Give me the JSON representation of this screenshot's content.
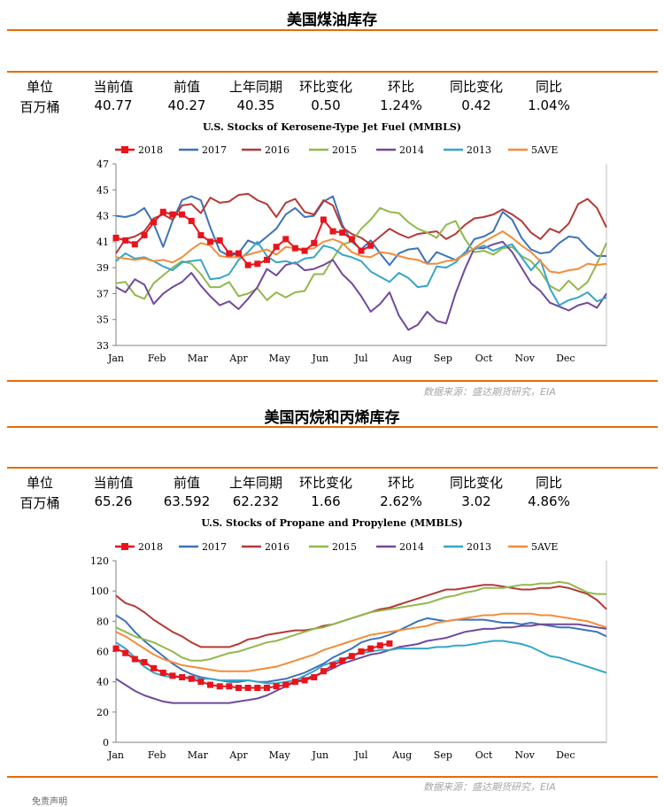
{
  "sections": [
    {
      "title": "美国煤油库存",
      "table": {
        "headers": [
          "单位",
          "当前值",
          "前值",
          "上年同期",
          "环比变化",
          "环比",
          "同比变化",
          "同比"
        ],
        "values": [
          "百万桶",
          "40.77",
          "40.27",
          "40.35",
          "0.50",
          "1.24%",
          "0.42",
          "1.04%"
        ]
      },
      "source": "数据来源：盛达期货研究，EIA"
    },
    {
      "title": "美国丙烷和丙烯库存",
      "table": {
        "headers": [
          "单位",
          "当前值",
          "前值",
          "上年同期",
          "环比变化",
          "环比",
          "同比变化",
          "同比"
        ],
        "values": [
          "百万桶",
          "65.26",
          "63.592",
          "62.232",
          "1.66",
          "2.62%",
          "3.02",
          "4.86%"
        ]
      },
      "source": "数据来源：盛达期货研究，EIA"
    }
  ],
  "footer": "免责声明",
  "colors": {
    "2018": "#e8141b",
    "2017": "#3c74b6",
    "2016": "#b33a36",
    "2015": "#92b84d",
    "2014": "#71499b",
    "2013": "#35a6c8",
    "5AVE": "#f28c3b",
    "accent_line": "#e46c0a"
  },
  "chart_data": [
    {
      "type": "line",
      "title": "U.S.  Stocks of Kerosene-Type Jet Fuel (MMBLS)",
      "xlabel": "",
      "ylabel": "",
      "ylim": [
        33,
        47
      ],
      "yticks": [
        33,
        35,
        37,
        39,
        41,
        43,
        45,
        47
      ],
      "month_labels": [
        "Jan",
        "Feb",
        "Mar",
        "Apr",
        "May",
        "Jun",
        "Jul",
        "Aug",
        "Sep",
        "Oct",
        "Nov",
        "Dec"
      ],
      "legend_placement": "top",
      "grid": false,
      "series": [
        {
          "name": "2018",
          "marker": "square",
          "values": [
            41.3,
            41.1,
            40.8,
            41.5,
            42.5,
            43.3,
            43.1,
            43.1,
            42.6,
            41.5,
            41.0,
            41.1,
            40.1,
            40.1,
            39.2,
            39.3,
            39.6,
            40.6,
            41.2,
            40.5,
            40.3,
            40.9,
            42.7,
            41.8,
            41.7,
            41.2,
            40.3,
            40.7
          ]
        },
        {
          "name": "2017",
          "values": [
            43.0,
            42.9,
            43.1,
            43.6,
            42.4,
            40.6,
            42.6,
            44.2,
            44.5,
            44.2,
            42.1,
            40.3,
            39.9,
            40.1,
            41.1,
            40.8,
            41.4,
            42.0,
            43.1,
            43.6,
            42.9,
            43.0,
            44.1,
            44.5,
            42.3,
            41.0,
            40.4,
            41.1,
            40.1,
            39.2,
            40.1,
            40.4,
            40.5,
            39.3,
            40.2,
            39.9,
            39.6,
            40.1,
            41.2,
            41.4,
            41.8,
            43.3,
            42.7,
            41.3,
            40.4,
            40.1,
            40.2,
            40.9,
            41.4,
            41.3,
            40.5,
            39.9,
            39.9
          ]
        },
        {
          "name": "2016",
          "values": [
            40.1,
            41.2,
            41.4,
            41.8,
            42.8,
            43.1,
            42.7,
            43.8,
            43.9,
            43.2,
            44.4,
            44.0,
            44.1,
            44.6,
            44.7,
            44.2,
            43.9,
            42.9,
            44.0,
            44.3,
            43.3,
            43.1,
            44.2,
            43.8,
            42.1,
            41.6,
            41.3,
            40.8,
            41.4,
            42.0,
            41.6,
            41.3,
            41.6,
            41.7,
            41.8,
            41.2,
            41.6,
            42.3,
            42.8,
            42.9,
            43.1,
            43.5,
            43.1,
            42.6,
            41.7,
            41.2,
            42.0,
            41.7,
            42.4,
            43.9,
            44.3,
            43.6,
            42.1
          ]
        },
        {
          "name": "2015",
          "values": [
            37.8,
            37.9,
            36.9,
            36.6,
            37.8,
            38.4,
            39.0,
            39.5,
            39.3,
            38.5,
            37.5,
            37.5,
            37.9,
            36.8,
            37.0,
            37.4,
            36.5,
            37.1,
            36.7,
            37.1,
            37.2,
            38.5,
            38.5,
            39.7,
            40.8,
            41.0,
            42.0,
            42.7,
            43.6,
            43.3,
            43.2,
            42.5,
            42.0,
            41.7,
            41.3,
            42.3,
            42.6,
            41.2,
            40.2,
            40.3,
            40.0,
            40.5,
            40.6,
            39.9,
            39.5,
            38.7,
            37.6,
            37.2,
            38.0,
            37.3,
            37.9,
            39.3,
            40.9
          ]
        },
        {
          "name": "2014",
          "values": [
            37.5,
            37.1,
            38.1,
            37.7,
            36.2,
            37.0,
            37.5,
            37.9,
            38.6,
            37.6,
            36.8,
            36.1,
            36.4,
            35.8,
            36.6,
            37.5,
            38.9,
            38.4,
            39.2,
            39.4,
            38.8,
            38.9,
            39.2,
            39.6,
            38.5,
            37.8,
            36.8,
            35.6,
            36.2,
            37.1,
            35.3,
            34.2,
            34.6,
            35.6,
            34.9,
            34.7,
            37.0,
            38.9,
            40.5,
            40.5,
            40.8,
            41.0,
            40.2,
            39.0,
            37.8,
            37.2,
            36.3,
            36.0,
            35.7,
            36.1,
            36.3,
            35.9,
            37.0
          ]
        },
        {
          "name": "2013",
          "values": [
            39.5,
            40.1,
            39.7,
            39.8,
            39.5,
            39.1,
            38.8,
            39.4,
            39.5,
            39.6,
            38.1,
            38.2,
            38.5,
            39.6,
            40.2,
            41.0,
            39.9,
            39.4,
            39.5,
            39.3,
            39.7,
            39.8,
            40.7,
            40.5,
            40.0,
            39.8,
            39.5,
            38.7,
            38.3,
            37.9,
            38.6,
            38.2,
            37.5,
            37.6,
            39.1,
            39.0,
            39.4,
            40.2,
            40.4,
            40.7,
            40.3,
            40.6,
            40.8,
            39.8,
            38.8,
            39.6,
            37.4,
            36.1,
            36.5,
            36.7,
            37.1,
            36.4,
            36.7
          ]
        },
        {
          "name": "5AVE",
          "values": [
            39.8,
            39.7,
            39.6,
            39.7,
            39.5,
            39.6,
            39.4,
            39.8,
            40.4,
            40.9,
            40.7,
            39.9,
            39.8,
            39.8,
            40.0,
            40.2,
            40.4,
            40.0,
            40.6,
            40.5,
            40.4,
            40.5,
            41.0,
            41.2,
            40.9,
            40.2,
            39.9,
            39.8,
            40.2,
            40.1,
            39.9,
            39.7,
            39.6,
            39.3,
            39.3,
            39.5,
            39.6,
            40.0,
            40.5,
            41.0,
            41.4,
            41.8,
            41.3,
            40.7,
            40.2,
            39.5,
            38.7,
            38.6,
            38.8,
            38.9,
            39.3,
            39.2,
            39.3
          ]
        }
      ]
    },
    {
      "type": "line",
      "title": "U.S.  Stocks of Propane and Propylene (MMBLS)",
      "xlabel": "",
      "ylabel": "",
      "ylim": [
        0,
        120
      ],
      "yticks": [
        0,
        20,
        40,
        60,
        80,
        100,
        120
      ],
      "month_labels": [
        "Jan",
        "Feb",
        "Mar",
        "Apr",
        "May",
        "Jun",
        "Jul",
        "Aug",
        "Sep",
        "Oct",
        "Nov",
        "Dec"
      ],
      "legend_placement": "top",
      "grid": false,
      "series": [
        {
          "name": "2018",
          "marker": "square",
          "values": [
            62,
            59,
            55,
            53,
            49,
            46,
            44,
            43,
            42,
            40,
            38,
            37,
            37,
            36,
            36,
            36,
            36,
            37,
            38,
            40,
            41,
            43,
            47,
            51,
            54,
            57,
            60,
            62,
            64,
            65.3
          ]
        },
        {
          "name": "2017",
          "values": [
            84,
            80,
            73,
            67,
            62,
            57,
            52,
            48,
            45,
            43,
            42,
            41,
            40,
            40,
            41,
            40,
            40,
            41,
            42,
            44,
            46,
            49,
            52,
            56,
            59,
            62,
            66,
            68,
            69,
            71,
            74,
            77,
            80,
            82,
            81,
            80,
            81,
            81,
            81,
            81,
            80,
            79,
            79,
            78,
            79,
            78,
            77,
            76,
            76,
            75,
            74,
            73,
            70
          ]
        },
        {
          "name": "2016",
          "values": [
            97,
            92,
            90,
            86,
            81,
            77,
            73,
            70,
            66,
            63,
            63,
            63,
            63,
            65,
            68,
            69,
            71,
            72,
            73,
            74,
            74,
            75,
            77,
            78,
            80,
            82,
            84,
            86,
            88,
            89,
            91,
            93,
            95,
            97,
            99,
            101,
            101,
            102,
            103,
            104,
            104,
            103,
            102,
            101,
            101,
            102,
            102,
            103,
            102,
            100,
            98,
            94,
            88
          ]
        },
        {
          "name": "2015",
          "values": [
            76,
            73,
            70,
            68,
            66,
            63,
            60,
            56,
            54,
            54,
            55,
            57,
            59,
            60,
            62,
            64,
            66,
            67,
            69,
            71,
            73,
            75,
            76,
            78,
            80,
            82,
            84,
            86,
            87,
            88,
            89,
            90,
            91,
            92,
            94,
            96,
            97,
            99,
            100,
            102,
            102,
            102,
            103,
            104,
            104,
            105,
            105,
            106,
            105,
            102,
            99,
            98,
            98
          ]
        },
        {
          "name": "2014",
          "values": [
            42,
            38,
            34,
            31,
            29,
            27,
            26,
            26,
            26,
            26,
            26,
            26,
            26,
            27,
            28,
            29,
            31,
            34,
            37,
            40,
            42,
            44,
            46,
            49,
            52,
            54,
            56,
            58,
            59,
            61,
            63,
            64,
            65,
            67,
            68,
            69,
            71,
            73,
            74,
            75,
            75,
            76,
            76,
            77,
            77,
            78,
            78,
            78,
            78,
            78,
            77,
            76,
            75
          ]
        },
        {
          "name": "2013",
          "values": [
            66,
            62,
            56,
            50,
            46,
            44,
            43,
            43,
            43,
            42,
            42,
            41,
            41,
            41,
            41,
            40,
            39,
            39,
            40,
            41,
            44,
            47,
            51,
            53,
            55,
            57,
            59,
            60,
            61,
            61,
            62,
            62,
            62,
            62,
            63,
            63,
            64,
            64,
            65,
            66,
            67,
            67,
            66,
            65,
            63,
            60,
            57,
            56,
            54,
            52,
            50,
            48,
            46
          ]
        },
        {
          "name": "5AVE",
          "values": [
            73,
            70,
            66,
            62,
            58,
            55,
            53,
            51,
            50,
            49,
            48,
            47,
            47,
            47,
            47,
            48,
            49,
            50,
            52,
            54,
            56,
            58,
            61,
            63,
            65,
            67,
            69,
            71,
            72,
            73,
            74,
            75,
            76,
            77,
            79,
            80,
            81,
            82,
            83,
            84,
            84,
            85,
            85,
            85,
            85,
            84,
            84,
            83,
            82,
            81,
            80,
            78,
            76
          ]
        }
      ]
    }
  ]
}
